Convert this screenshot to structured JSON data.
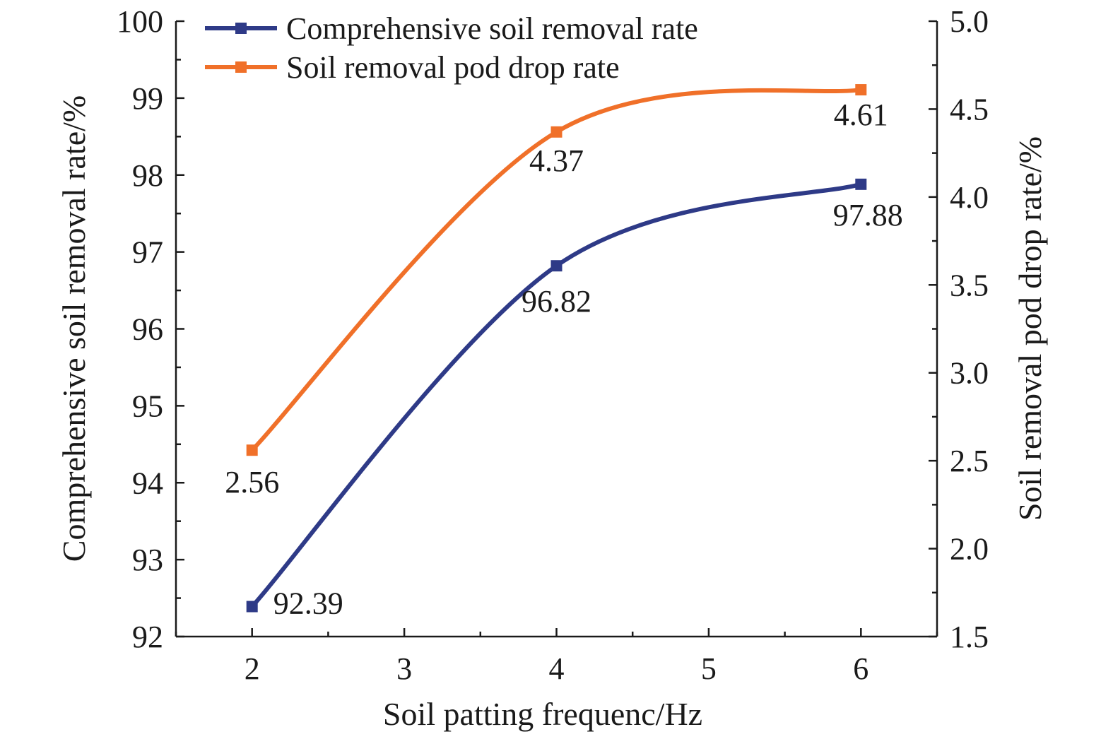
{
  "chart_data": {
    "type": "line",
    "title": "",
    "xlabel": "Soil patting frequenc/Hz",
    "ylabel": "Comprehensive soil removal rate/%",
    "y2label": "Soil removal pod drop rate/%",
    "x": [
      2,
      4,
      6
    ],
    "xlim": [
      1.5,
      6.5
    ],
    "ylim": [
      92,
      100
    ],
    "y2lim": [
      1.5,
      5.0
    ],
    "xticks": [
      "2",
      "3",
      "4",
      "5",
      "6"
    ],
    "yticks": [
      "92",
      "93",
      "94",
      "95",
      "96",
      "97",
      "98",
      "99",
      "100"
    ],
    "y2ticks": [
      "1.5",
      "2.0",
      "2.5",
      "3.0",
      "3.5",
      "4.0",
      "4.5",
      "5.0"
    ],
    "grid": false,
    "legend_position": "top-left",
    "series": [
      {
        "name": "Comprehensive soil removal rate",
        "axis": "left",
        "color": "#2e3a87",
        "values": [
          92.39,
          96.82,
          97.88
        ],
        "labels": [
          "92.39",
          "96.82",
          "97.88"
        ]
      },
      {
        "name": "Soil removal pod drop rate",
        "axis": "right",
        "color": "#f07029",
        "values": [
          2.56,
          4.37,
          4.61
        ],
        "labels": [
          "2.56",
          "4.37",
          "4.61"
        ]
      }
    ]
  }
}
